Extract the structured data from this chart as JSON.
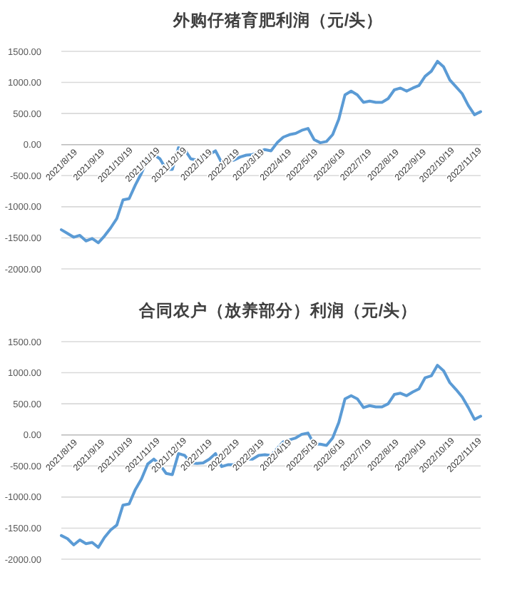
{
  "chart_data": [
    {
      "type": "line",
      "title": "外购仔猪育肥利润（元/头）",
      "x": [
        "2021-08-19",
        "2021-08-26",
        "2021-09-02",
        "2021-09-09",
        "2021-09-16",
        "2021-09-23",
        "2021-09-30",
        "2021-10-07",
        "2021-10-14",
        "2021-10-21",
        "2021-10-28",
        "2021-11-04",
        "2021-11-11",
        "2021-11-18",
        "2021-11-25",
        "2021-12-02",
        "2021-12-09",
        "2021-12-16",
        "2021-12-23",
        "2021-12-30",
        "2022-01-06",
        "2022-01-13",
        "2022-01-20",
        "2022-01-27",
        "2022-02-03",
        "2022-02-10",
        "2022-02-17",
        "2022-02-24",
        "2022-03-03",
        "2022-03-10",
        "2022-03-17",
        "2022-03-24",
        "2022-03-31",
        "2022-04-07",
        "2022-04-14",
        "2022-04-21",
        "2022-04-28",
        "2022-05-05",
        "2022-05-12",
        "2022-05-19",
        "2022-05-26",
        "2022-06-02",
        "2022-06-09",
        "2022-06-16",
        "2022-06-23",
        "2022-06-30",
        "2022-07-07",
        "2022-07-14",
        "2022-07-21",
        "2022-07-28",
        "2022-08-04",
        "2022-08-11",
        "2022-08-18",
        "2022-08-25",
        "2022-09-01",
        "2022-09-08",
        "2022-09-15",
        "2022-09-22",
        "2022-09-29",
        "2022-10-06",
        "2022-10-13",
        "2022-10-20",
        "2022-10-27",
        "2022-11-03",
        "2022-11-10",
        "2022-11-17",
        "2022-11-24",
        "2022-12-01",
        "2022-12-08"
      ],
      "series": [
        {
          "color": "#5b9bd5",
          "values": [
            -1370,
            -1430,
            -1490,
            -1460,
            -1550,
            -1510,
            -1580,
            -1470,
            -1340,
            -1190,
            -890,
            -870,
            -650,
            -460,
            -230,
            -160,
            -230,
            -400,
            -400,
            -50,
            -80,
            -230,
            -250,
            -230,
            -160,
            -100,
            -290,
            -270,
            -250,
            -200,
            -170,
            -160,
            -120,
            -80,
            -100,
            30,
            120,
            160,
            180,
            230,
            260,
            80,
            30,
            50,
            160,
            410,
            800,
            860,
            800,
            680,
            700,
            680,
            680,
            740,
            880,
            910,
            860,
            910,
            950,
            1100,
            1180,
            1340,
            1250,
            1040,
            930,
            820,
            630,
            480,
            530
          ]
        }
      ],
      "xlim": [
        "2021-08-19",
        "2022-12-08"
      ],
      "xticks": [
        {
          "value": "2021-08-19",
          "label": "2021/8/19"
        },
        {
          "value": "2021-09-19",
          "label": "2021/9/19"
        },
        {
          "value": "2021-10-19",
          "label": "2021/10/19"
        },
        {
          "value": "2021-11-19",
          "label": "2021/11/19"
        },
        {
          "value": "2021-12-19",
          "label": "2021/12/19"
        },
        {
          "value": "2022-01-19",
          "label": "2022/1/19"
        },
        {
          "value": "2022-02-19",
          "label": "2022/2/19"
        },
        {
          "value": "2022-03-19",
          "label": "2022/3/19"
        },
        {
          "value": "2022-04-19",
          "label": "2022/4/19"
        },
        {
          "value": "2022-05-19",
          "label": "2022/5/19"
        },
        {
          "value": "2022-06-19",
          "label": "2022/6/19"
        },
        {
          "value": "2022-07-19",
          "label": "2022/7/19"
        },
        {
          "value": "2022-08-19",
          "label": "2022/8/19"
        },
        {
          "value": "2022-09-19",
          "label": "2022/9/19"
        },
        {
          "value": "2022-10-19",
          "label": "2022/10/19"
        },
        {
          "value": "2022-11-19",
          "label": "2022/11/19"
        }
      ],
      "ylim": [
        -2000,
        1500
      ],
      "yticks": [
        {
          "value": -2000,
          "label": "-2000.00"
        },
        {
          "value": -1500,
          "label": "-1500.00"
        },
        {
          "value": -1000,
          "label": "-1000.00"
        },
        {
          "value": -500,
          "label": "-500.00"
        },
        {
          "value": 0,
          "label": "0.00"
        },
        {
          "value": 500,
          "label": "500.00"
        },
        {
          "value": 1000,
          "label": "1000.00"
        },
        {
          "value": 1500,
          "label": "1500.00"
        }
      ],
      "grid": "y",
      "marker": "none",
      "line_style": "solid"
    },
    {
      "type": "line",
      "title": "合同农户（放养部分）利润（元/头）",
      "x": [
        "2021-08-19",
        "2021-08-26",
        "2021-09-02",
        "2021-09-09",
        "2021-09-16",
        "2021-09-23",
        "2021-09-30",
        "2021-10-07",
        "2021-10-14",
        "2021-10-21",
        "2021-10-28",
        "2021-11-04",
        "2021-11-11",
        "2021-11-18",
        "2021-11-25",
        "2021-12-02",
        "2021-12-09",
        "2021-12-16",
        "2021-12-23",
        "2021-12-30",
        "2022-01-06",
        "2022-01-13",
        "2022-01-20",
        "2022-01-27",
        "2022-02-03",
        "2022-02-10",
        "2022-02-17",
        "2022-02-24",
        "2022-03-03",
        "2022-03-10",
        "2022-03-17",
        "2022-03-24",
        "2022-03-31",
        "2022-04-07",
        "2022-04-14",
        "2022-04-21",
        "2022-04-28",
        "2022-05-05",
        "2022-05-12",
        "2022-05-19",
        "2022-05-26",
        "2022-06-02",
        "2022-06-09",
        "2022-06-16",
        "2022-06-23",
        "2022-06-30",
        "2022-07-07",
        "2022-07-14",
        "2022-07-21",
        "2022-07-28",
        "2022-08-04",
        "2022-08-11",
        "2022-08-18",
        "2022-08-25",
        "2022-09-01",
        "2022-09-08",
        "2022-09-15",
        "2022-09-22",
        "2022-09-29",
        "2022-10-06",
        "2022-10-13",
        "2022-10-20",
        "2022-10-27",
        "2022-11-03",
        "2022-11-10",
        "2022-11-17",
        "2022-11-24",
        "2022-12-01",
        "2022-12-08"
      ],
      "series": [
        {
          "color": "#5b9bd5",
          "values": [
            -1620,
            -1670,
            -1770,
            -1690,
            -1750,
            -1730,
            -1810,
            -1650,
            -1530,
            -1450,
            -1130,
            -1110,
            -880,
            -710,
            -470,
            -390,
            -480,
            -620,
            -640,
            -300,
            -330,
            -450,
            -460,
            -450,
            -390,
            -300,
            -510,
            -480,
            -480,
            -410,
            -390,
            -390,
            -330,
            -320,
            -330,
            -220,
            -110,
            -80,
            -50,
            10,
            30,
            -150,
            -150,
            -170,
            -50,
            200,
            580,
            630,
            580,
            440,
            470,
            450,
            450,
            500,
            650,
            670,
            630,
            690,
            740,
            920,
            950,
            1120,
            1030,
            840,
            730,
            610,
            440,
            250,
            300
          ]
        }
      ],
      "xlim": [
        "2021-08-19",
        "2022-12-08"
      ],
      "xticks": [
        {
          "value": "2021-08-19",
          "label": "2021/8/19"
        },
        {
          "value": "2021-09-19",
          "label": "2021/9/19"
        },
        {
          "value": "2021-10-19",
          "label": "2021/10/19"
        },
        {
          "value": "2021-11-19",
          "label": "2021/11/19"
        },
        {
          "value": "2021-12-19",
          "label": "2021/12/19"
        },
        {
          "value": "2022-01-19",
          "label": "2022/1/19"
        },
        {
          "value": "2022-02-19",
          "label": "2022/2/19"
        },
        {
          "value": "2022-03-19",
          "label": "2022/3/19"
        },
        {
          "value": "2022-04-19",
          "label": "2022/4/19"
        },
        {
          "value": "2022-05-19",
          "label": "2022/5/19"
        },
        {
          "value": "2022-06-19",
          "label": "2022/6/19"
        },
        {
          "value": "2022-07-19",
          "label": "2022/7/19"
        },
        {
          "value": "2022-08-19",
          "label": "2022/8/19"
        },
        {
          "value": "2022-09-19",
          "label": "2022/9/19"
        },
        {
          "value": "2022-10-19",
          "label": "2022/10/19"
        },
        {
          "value": "2022-11-19",
          "label": "2022/11/19"
        }
      ],
      "ylim": [
        -2000,
        1500
      ],
      "yticks": [
        {
          "value": -2000,
          "label": "-2000.00"
        },
        {
          "value": -1500,
          "label": "-1500.00"
        },
        {
          "value": -1000,
          "label": "-1000.00"
        },
        {
          "value": -500,
          "label": "-500.00"
        },
        {
          "value": 0,
          "label": "0.00"
        },
        {
          "value": 500,
          "label": "500.00"
        },
        {
          "value": 1000,
          "label": "1000.00"
        },
        {
          "value": 1500,
          "label": "1500.00"
        }
      ],
      "grid": "y",
      "marker": "none",
      "line_style": "solid"
    }
  ]
}
